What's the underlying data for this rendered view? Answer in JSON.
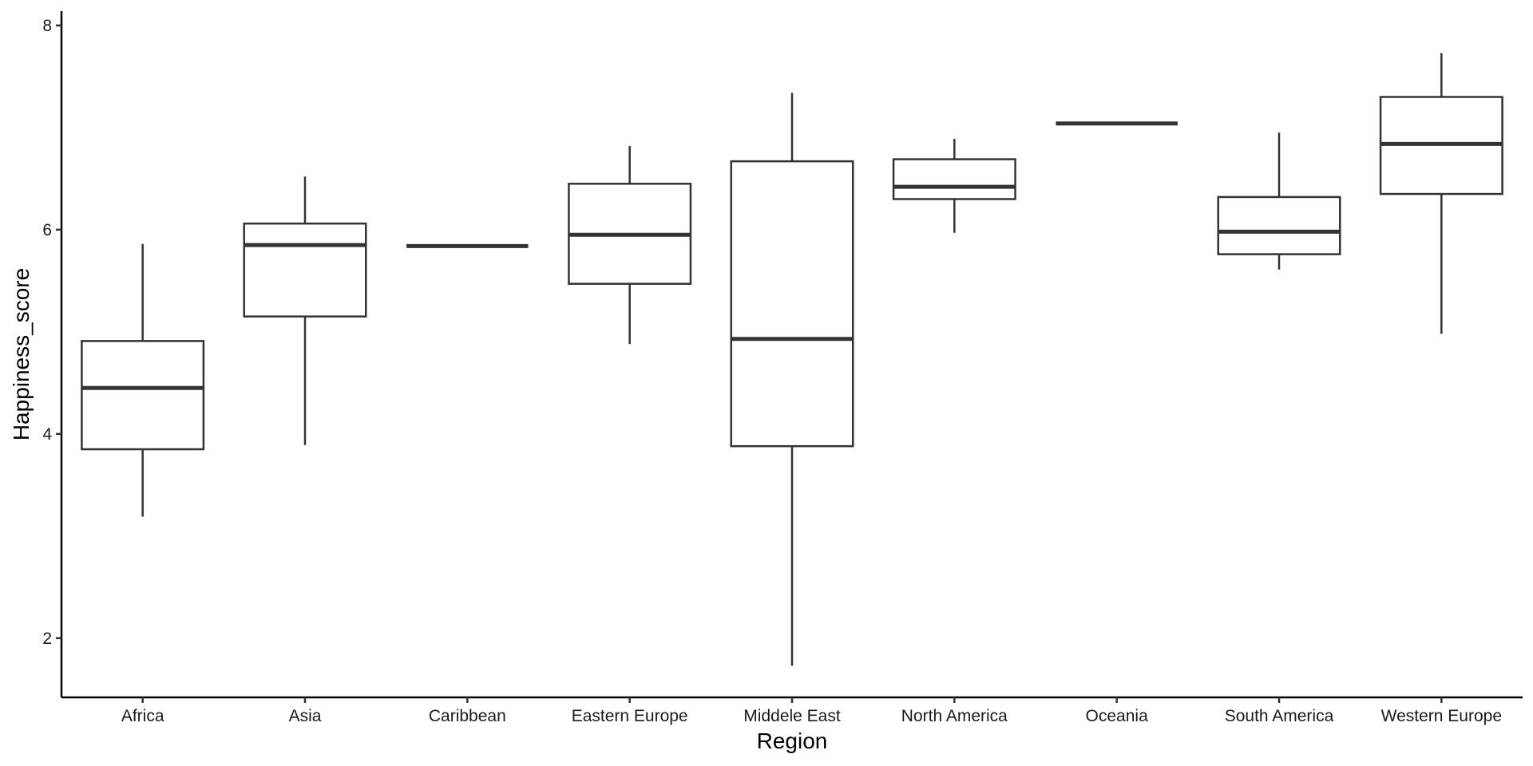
{
  "chart_data": {
    "type": "boxplot",
    "title": "",
    "xlabel": "Region",
    "ylabel": "Happiness_score",
    "ylim": [
      1.42,
      8.14
    ],
    "yticks": [
      2,
      4,
      6,
      8
    ],
    "grid": false,
    "categories": [
      "Africa",
      "Asia",
      "Caribbean",
      "Eastern Europe",
      "Middele East",
      "North America",
      "Oceania",
      "South America",
      "Western Europe"
    ],
    "boxes": [
      {
        "category": "Africa",
        "min": 3.19,
        "q1": 3.85,
        "median": 4.45,
        "q3": 4.91,
        "max": 5.86
      },
      {
        "category": "Asia",
        "min": 3.89,
        "q1": 5.15,
        "median": 5.85,
        "q3": 6.06,
        "max": 6.52
      },
      {
        "category": "Caribbean",
        "min": 5.84,
        "q1": 5.84,
        "median": 5.84,
        "q3": 5.84,
        "max": 5.84
      },
      {
        "category": "Eastern Europe",
        "min": 4.88,
        "q1": 5.47,
        "median": 5.95,
        "q3": 6.45,
        "max": 6.82
      },
      {
        "category": "Middele East",
        "min": 1.73,
        "q1": 3.88,
        "median": 4.93,
        "q3": 6.67,
        "max": 7.34
      },
      {
        "category": "North America",
        "min": 5.97,
        "q1": 6.3,
        "median": 6.42,
        "q3": 6.69,
        "max": 6.89
      },
      {
        "category": "Oceania",
        "min": 7.04,
        "q1": 7.04,
        "median": 7.04,
        "q3": 7.04,
        "max": 7.04
      },
      {
        "category": "South America",
        "min": 5.61,
        "q1": 5.76,
        "median": 5.98,
        "q3": 6.32,
        "max": 6.95
      },
      {
        "category": "Western Europe",
        "min": 4.98,
        "q1": 6.35,
        "median": 6.84,
        "q3": 7.3,
        "max": 7.73
      }
    ]
  }
}
